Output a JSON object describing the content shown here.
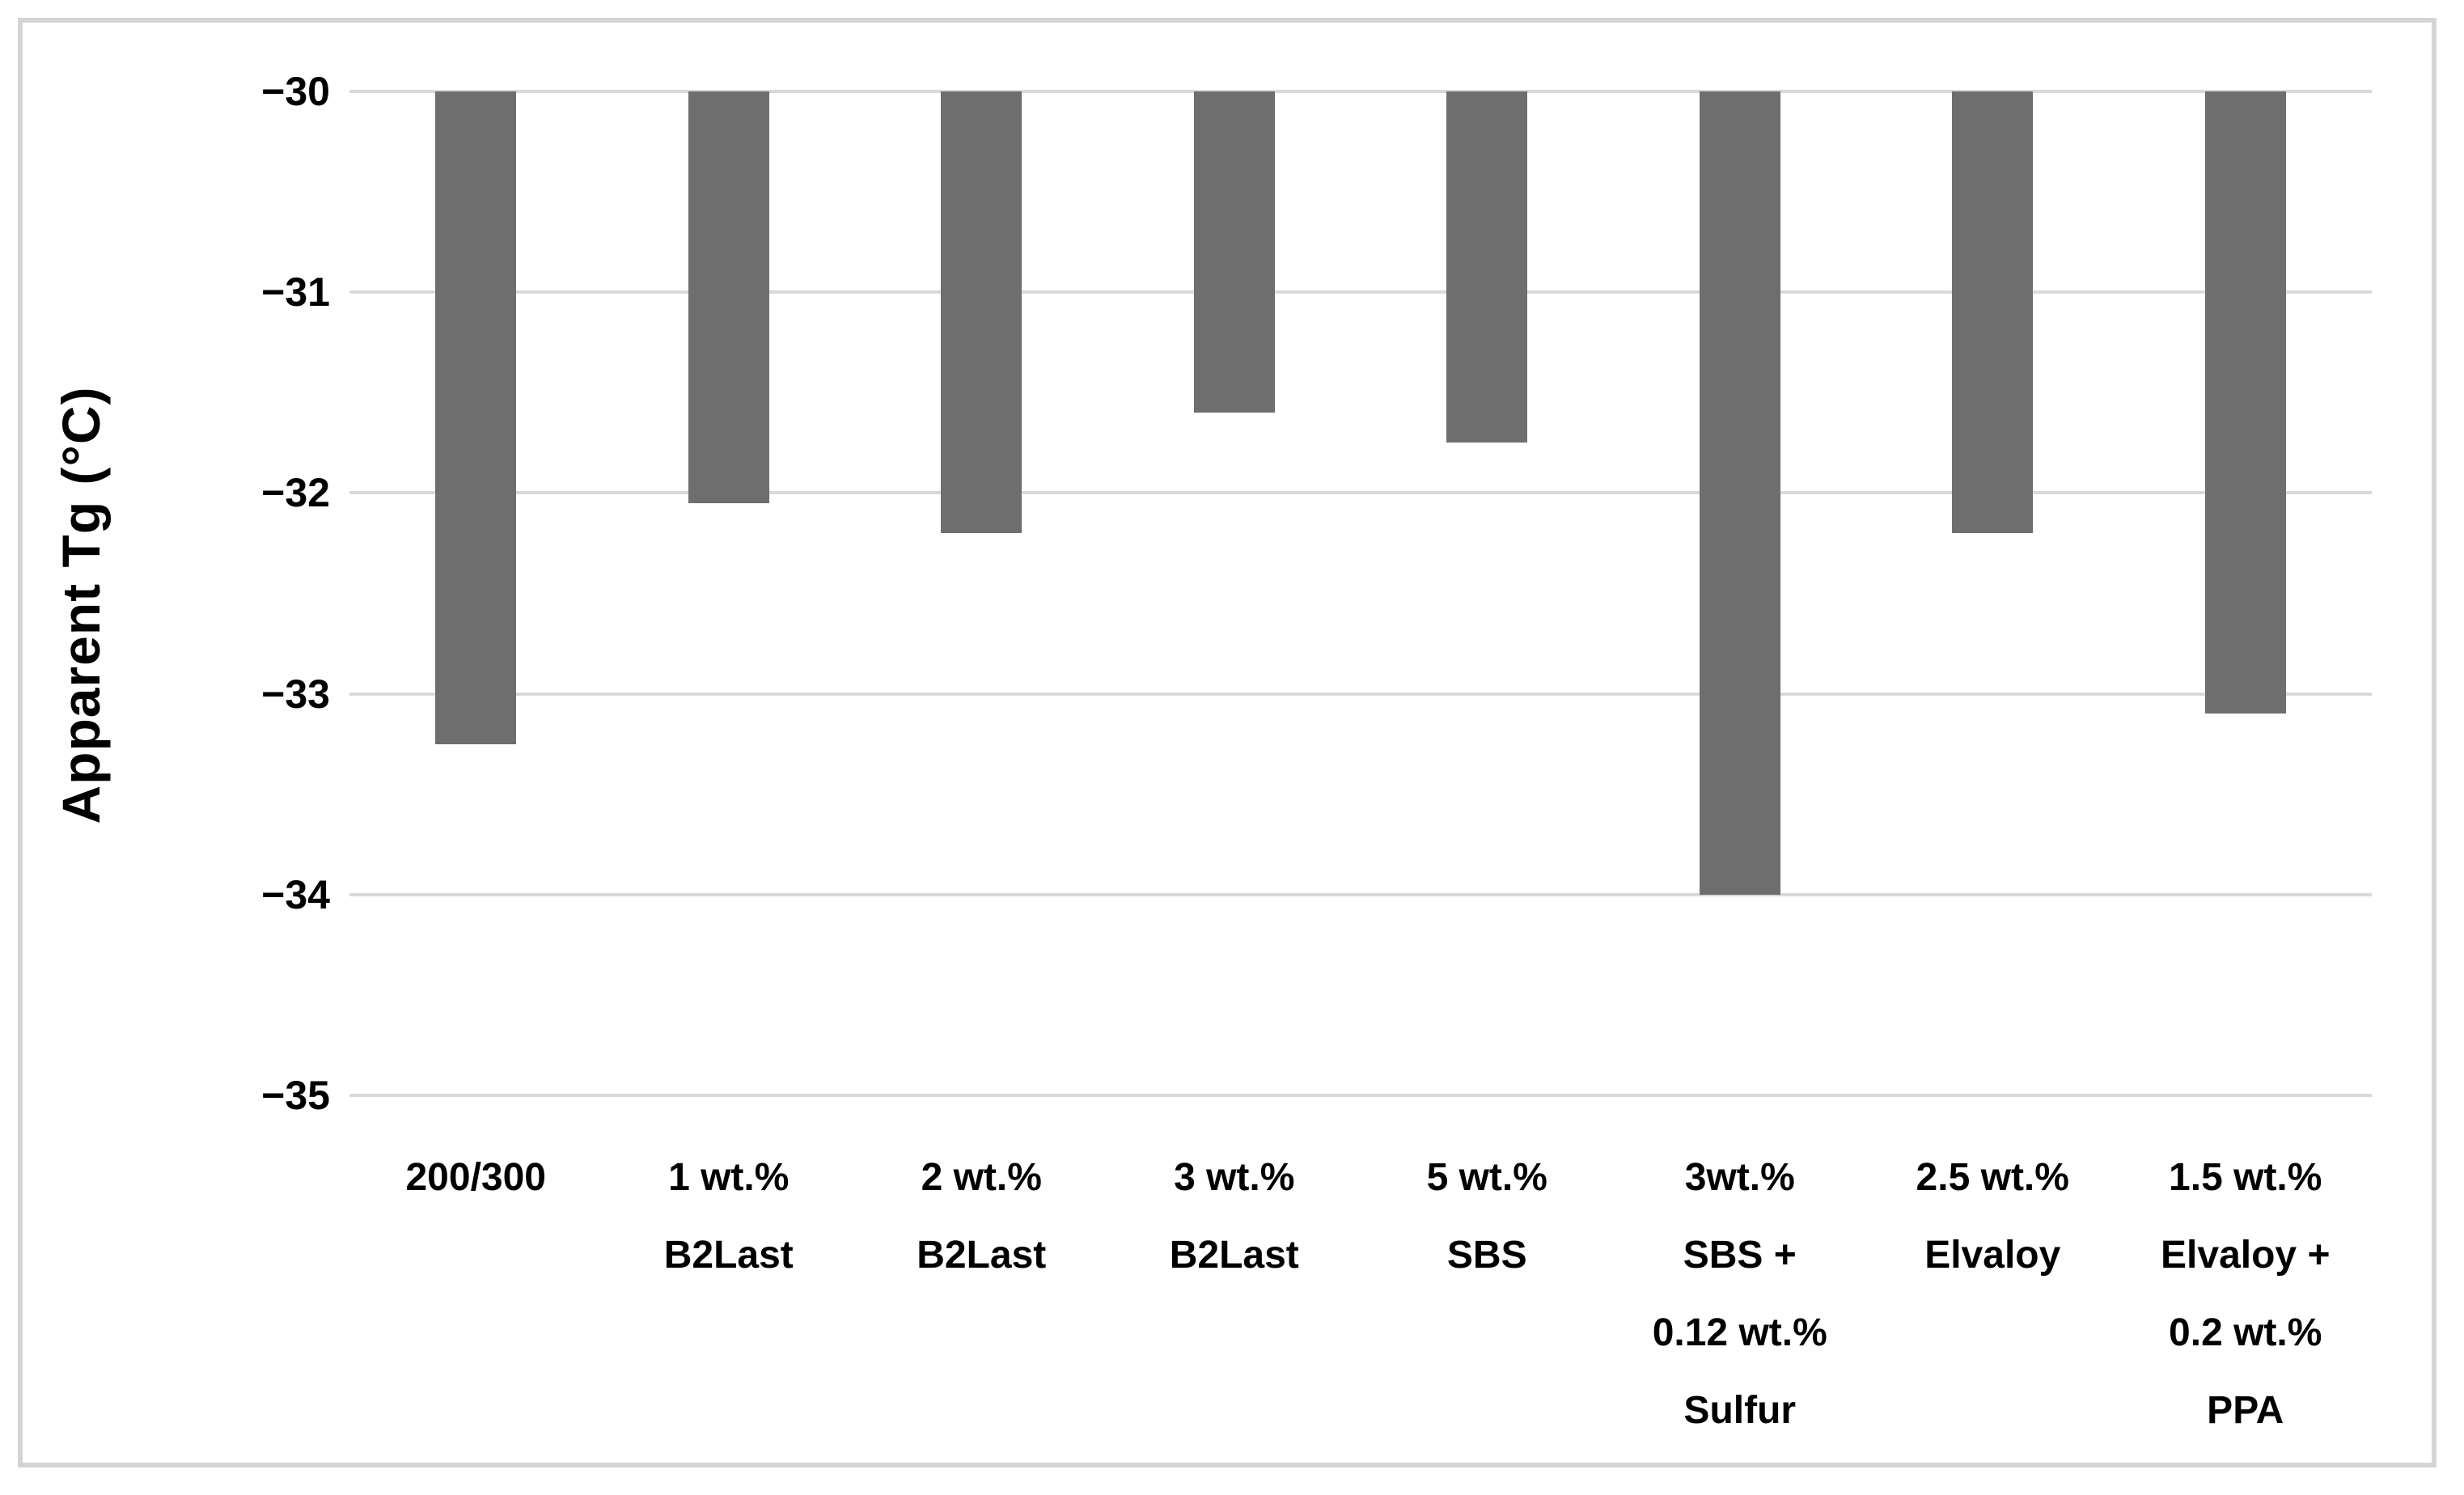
{
  "chart_data": {
    "type": "bar",
    "title": "",
    "xlabel": "",
    "ylabel": "Apparent Tg (°C)",
    "categories": [
      "200/300",
      "1 wt.% B2Last",
      "2 wt.% B2Last",
      "3 wt.% B2Last",
      "5 wt.% SBS",
      "3wt.% SBS + 0.12 wt.% Sulfur",
      "2.5 wt.% Elvaloy",
      "1.5 wt.% Elvaloy + 0.2 wt.% PPA"
    ],
    "categories_lines": [
      [
        "200/300"
      ],
      [
        "1 wt.%",
        "B2Last"
      ],
      [
        "2 wt.%",
        "B2Last"
      ],
      [
        "3 wt.%",
        "B2Last"
      ],
      [
        "5 wt.%",
        "SBS"
      ],
      [
        "3wt.%",
        "SBS +",
        "0.12 wt.%",
        "Sulfur"
      ],
      [
        "2.5 wt.%",
        "Elvaloy"
      ],
      [
        "1.5 wt.%",
        "Elvaloy +",
        "0.2 wt.%",
        "PPA"
      ]
    ],
    "values": [
      -33.25,
      -32.05,
      -32.2,
      -31.6,
      -31.75,
      -34.0,
      -32.2,
      -33.1
    ],
    "baseline": -30,
    "ylim": [
      -35,
      -30
    ],
    "yticks": [
      -30,
      -31,
      -32,
      -33,
      -34,
      -35
    ],
    "ytick_labels": [
      "−30",
      "−31",
      "−32",
      "−33",
      "−34",
      "−35"
    ],
    "grid": "horizontal",
    "legend": "none",
    "bar_color": "#6e6e6e",
    "gridline_color": "#d9d9d9",
    "frame_color": "#d4d4d4",
    "text_color": "#000000"
  }
}
